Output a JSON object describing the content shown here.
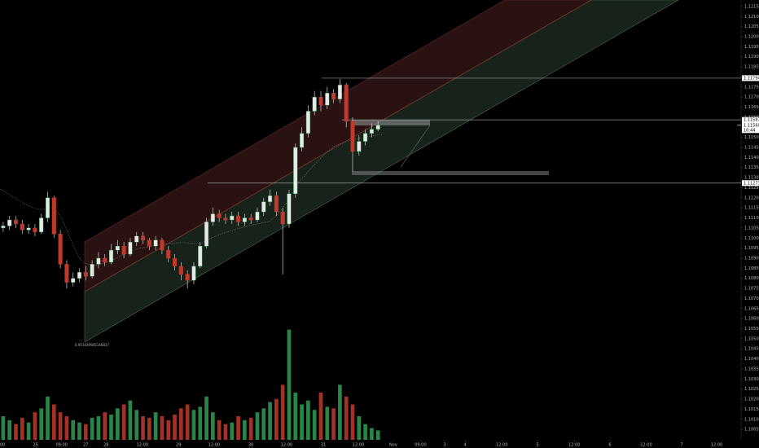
{
  "chart_data": {
    "type": "candlestick",
    "xlim": [
      -0.5,
      115.5
    ],
    "xticks": [
      {
        "value": -0.1,
        "label": "00"
      },
      {
        "value": 5.1,
        "label": "25"
      },
      {
        "value": 9.2,
        "label": "09:00"
      },
      {
        "value": 13,
        "label": "27"
      },
      {
        "value": 16.2,
        "label": "28"
      },
      {
        "value": 21.9,
        "label": "12:00"
      },
      {
        "value": 27.6,
        "label": "29"
      },
      {
        "value": 33.2,
        "label": "12:00"
      },
      {
        "value": 39,
        "label": "30"
      },
      {
        "value": 44.6,
        "label": "12:00"
      },
      {
        "value": 50.4,
        "label": "31"
      },
      {
        "value": 55.9,
        "label": "12:00"
      },
      {
        "value": 61.4,
        "label": "Nov"
      },
      {
        "value": 65.7,
        "label": "09:00"
      },
      {
        "value": 69.5,
        "label": "3"
      },
      {
        "value": 72.7,
        "label": "4"
      },
      {
        "value": 78.5,
        "label": "12:00"
      },
      {
        "value": 84.1,
        "label": "5"
      },
      {
        "value": 89.9,
        "label": "12:00"
      },
      {
        "value": 95.5,
        "label": "6"
      },
      {
        "value": 101.2,
        "label": "12:00"
      },
      {
        "value": 106.8,
        "label": "7"
      },
      {
        "value": 112.3,
        "label": "12:00"
      }
    ],
    "ylim": [
      1.09998,
      1.12182
    ],
    "yticks": [
      {
        "value": 1.1215,
        "label": "1.12150"
      },
      {
        "value": 1.121,
        "label": "1.12100"
      },
      {
        "value": 1.1205,
        "label": "1.12050"
      },
      {
        "value": 1.12,
        "label": "1.12000"
      },
      {
        "value": 1.1195,
        "label": "1.11950"
      },
      {
        "value": 1.119,
        "label": "1.11900"
      },
      {
        "value": 1.1185,
        "label": "1.11850"
      },
      {
        "value": 1.118,
        "label": "1.11800"
      },
      {
        "value": 1.1175,
        "label": "1.11750"
      },
      {
        "value": 1.117,
        "label": "1.11700"
      },
      {
        "value": 1.1165,
        "label": "1.11650"
      },
      {
        "value": 1.116,
        "label": "1.11600"
      },
      {
        "value": 1.1155,
        "label": "1.11550"
      },
      {
        "value": 1.115,
        "label": "1.11500"
      },
      {
        "value": 1.1145,
        "label": "1.11450"
      },
      {
        "value": 1.114,
        "label": "1.11400"
      },
      {
        "value": 1.1135,
        "label": "1.11350"
      },
      {
        "value": 1.113,
        "label": "1.11300"
      },
      {
        "value": 1.1125,
        "label": "1.11250"
      },
      {
        "value": 1.112,
        "label": "1.11200"
      },
      {
        "value": 1.1115,
        "label": "1.11150"
      },
      {
        "value": 1.111,
        "label": "1.11100"
      },
      {
        "value": 1.1105,
        "label": "1.11050"
      },
      {
        "value": 1.11,
        "label": "1.11000"
      },
      {
        "value": 1.1095,
        "label": "1.10950"
      },
      {
        "value": 1.109,
        "label": "1.10900"
      },
      {
        "value": 1.1085,
        "label": "1.10850"
      },
      {
        "value": 1.108,
        "label": "1.10800"
      },
      {
        "value": 1.1075,
        "label": "1.10750"
      },
      {
        "value": 1.107,
        "label": "1.10700"
      },
      {
        "value": 1.1065,
        "label": "1.10650"
      },
      {
        "value": 1.106,
        "label": "1.10600"
      },
      {
        "value": 1.1055,
        "label": "1.10550"
      },
      {
        "value": 1.105,
        "label": "1.10500"
      },
      {
        "value": 1.1045,
        "label": "1.10450"
      },
      {
        "value": 1.104,
        "label": "1.10400"
      },
      {
        "value": 1.1035,
        "label": "1.10350"
      },
      {
        "value": 1.103,
        "label": "1.10300"
      },
      {
        "value": 1.1025,
        "label": "1.10250"
      },
      {
        "value": 1.102,
        "label": "1.10200"
      },
      {
        "value": 1.1015,
        "label": "1.10150"
      },
      {
        "value": 1.101,
        "label": "1.10100"
      },
      {
        "value": 1.1005,
        "label": "1.10050"
      }
    ],
    "up_color": "#2f9e52",
    "down_color": "#c0392b",
    "open": [
      1.1105,
      1.1106,
      1.1109,
      1.1107,
      1.1104,
      1.1105,
      1.1103,
      1.111,
      1.112,
      1.1102,
      1.1087,
      1.1078,
      1.108,
      1.1083,
      1.1081,
      1.1087,
      1.109,
      1.1088,
      1.1094,
      1.1096,
      1.1092,
      1.1098,
      1.1101,
      1.1099,
      1.1096,
      1.1099,
      1.1094,
      1.109,
      1.1086,
      1.1082,
      1.1079,
      1.1086,
      1.1096,
      1.1108,
      1.1112,
      1.111,
      1.1109,
      1.1111,
      1.1108,
      1.111,
      1.1109,
      1.1113,
      1.1118,
      1.1121,
      1.1113,
      1.1107,
      1.1122,
      1.1145,
      1.1152,
      1.1163,
      1.117,
      1.1166,
      1.1172,
      1.1169,
      1.1176,
      1.1158,
      1.1143,
      1.1148,
      1.1152,
      1.1154
    ],
    "high": [
      1.1108,
      1.1111,
      1.1111,
      1.1109,
      1.1107,
      1.1107,
      1.1112,
      1.1123,
      1.1121,
      1.1104,
      1.1089,
      1.1083,
      1.1085,
      1.1086,
      1.1089,
      1.1093,
      1.1092,
      1.1097,
      1.1099,
      1.1098,
      1.11,
      1.1103,
      1.1103,
      1.11,
      1.1101,
      1.11,
      1.1096,
      1.1092,
      1.1088,
      1.1084,
      1.1088,
      1.1098,
      1.111,
      1.1115,
      1.1114,
      1.1112,
      1.1113,
      1.1113,
      1.1112,
      1.1112,
      1.1115,
      1.112,
      1.1124,
      1.1123,
      1.1115,
      1.1124,
      1.1147,
      1.1155,
      1.1166,
      1.1173,
      1.1173,
      1.1175,
      1.1174,
      1.1179,
      1.1177,
      1.116,
      1.1151,
      1.1154,
      1.1157,
      1.1158
    ],
    "low": [
      1.1103,
      1.1104,
      1.1105,
      1.1102,
      1.1102,
      1.1101,
      1.1102,
      1.1108,
      1.11,
      1.1085,
      1.1075,
      1.1076,
      1.1078,
      1.1079,
      1.108,
      1.1085,
      1.1086,
      1.1087,
      1.1092,
      1.109,
      1.1091,
      1.1096,
      1.1097,
      1.1094,
      1.1094,
      1.1092,
      1.1088,
      1.1084,
      1.1079,
      1.1075,
      1.1077,
      1.1085,
      1.1095,
      1.1106,
      1.1108,
      1.1107,
      1.1107,
      1.1106,
      1.1106,
      1.1107,
      1.1108,
      1.1111,
      1.1116,
      1.1111,
      1.1082,
      1.1105,
      1.112,
      1.1143,
      1.115,
      1.1161,
      1.1163,
      1.1164,
      1.1167,
      1.1167,
      1.1155,
      1.1133,
      1.1141,
      1.1146,
      1.115,
      1.1153
    ],
    "close": [
      1.1106,
      1.1109,
      1.1107,
      1.1104,
      1.1105,
      1.1103,
      1.111,
      1.112,
      1.1102,
      1.1087,
      1.1078,
      1.108,
      1.1083,
      1.1081,
      1.1087,
      1.109,
      1.1088,
      1.1094,
      1.1096,
      1.1092,
      1.1098,
      1.1101,
      1.1099,
      1.1096,
      1.1099,
      1.1094,
      1.109,
      1.1086,
      1.1082,
      1.1079,
      1.1086,
      1.1096,
      1.1108,
      1.1112,
      1.111,
      1.1109,
      1.1111,
      1.1108,
      1.111,
      1.1109,
      1.1113,
      1.1118,
      1.1121,
      1.1113,
      1.1107,
      1.1122,
      1.1145,
      1.1152,
      1.1163,
      1.117,
      1.1166,
      1.1172,
      1.1169,
      1.1176,
      1.1158,
      1.1143,
      1.1148,
      1.1152,
      1.1154,
      1.1156
    ],
    "volume": [
      30,
      25,
      20,
      28,
      22,
      35,
      40,
      55,
      45,
      35,
      30,
      25,
      22,
      20,
      28,
      30,
      35,
      32,
      40,
      45,
      50,
      38,
      30,
      28,
      35,
      30,
      25,
      32,
      40,
      45,
      38,
      42,
      55,
      35,
      25,
      20,
      22,
      30,
      25,
      28,
      35,
      40,
      48,
      52,
      70,
      140,
      60,
      45,
      50,
      38,
      60,
      42,
      40,
      70,
      55,
      45,
      30,
      20,
      15,
      12
    ],
    "vlim": [
      0,
      150
    ],
    "levels": [
      1.11794,
      1.11587,
      1.11273
    ],
    "last_price": {
      "value": 1.1156,
      "label": "1.11560"
    },
    "countdown": "10:44",
    "annotation": "0.951039945146827"
  }
}
